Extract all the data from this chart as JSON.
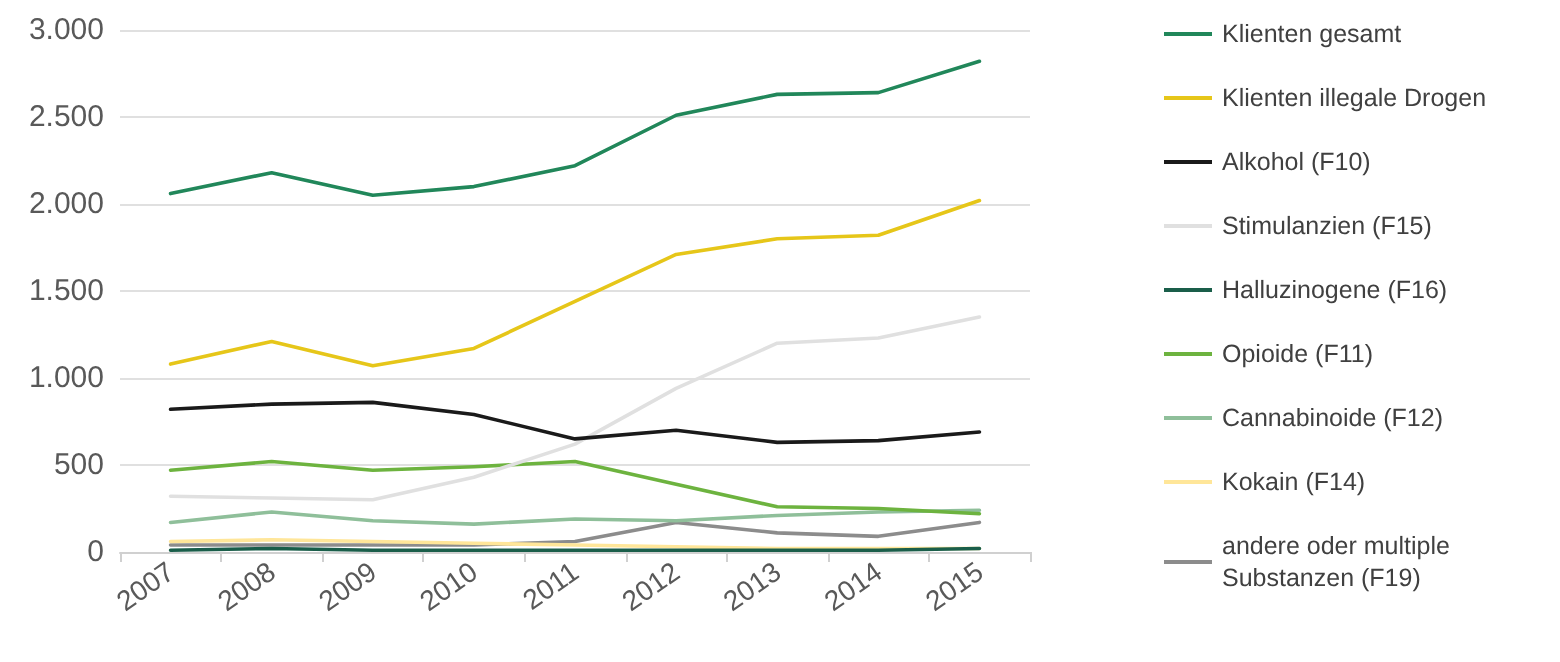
{
  "chart_data": {
    "type": "line",
    "categories": [
      "2007",
      "2008",
      "2009",
      "2010",
      "2011",
      "2012",
      "2013",
      "2014",
      "2015"
    ],
    "series": [
      {
        "name": "Klienten gesamt",
        "color": "#21875a",
        "values": [
          2060,
          2180,
          2050,
          2100,
          2220,
          2510,
          2630,
          2640,
          2820
        ]
      },
      {
        "name": "Klienten illegale Drogen",
        "color": "#e6c619",
        "values": [
          1080,
          1210,
          1070,
          1170,
          1440,
          1710,
          1800,
          1820,
          2020
        ]
      },
      {
        "name": "Alkohol (F10)",
        "color": "#1a1a1a",
        "values": [
          820,
          850,
          860,
          790,
          650,
          700,
          630,
          640,
          690
        ]
      },
      {
        "name": "Stimulanzien (F15)",
        "color": "#e0e0e0",
        "values": [
          320,
          310,
          300,
          430,
          620,
          940,
          1200,
          1230,
          1350
        ]
      },
      {
        "name": "Halluzinogene (F16)",
        "color": "#1a5e4a",
        "values": [
          10,
          20,
          10,
          10,
          10,
          10,
          10,
          10,
          20
        ]
      },
      {
        "name": "Opioide (F11)",
        "color": "#6db33f",
        "values": [
          470,
          520,
          470,
          490,
          520,
          390,
          260,
          250,
          220
        ]
      },
      {
        "name": "Cannabinoide (F12)",
        "color": "#8fbf9a",
        "values": [
          170,
          230,
          180,
          160,
          190,
          180,
          210,
          230,
          240
        ]
      },
      {
        "name": "Kokain (F14)",
        "color": "#ffe699",
        "values": [
          60,
          70,
          60,
          50,
          40,
          30,
          20,
          20,
          20
        ]
      },
      {
        "name": "andere oder multiple\nSubstanzen (F19)",
        "color": "#8c8c8c",
        "values": [
          40,
          40,
          40,
          40,
          60,
          170,
          110,
          90,
          170
        ]
      }
    ],
    "ylim": [
      0,
      3000
    ],
    "yticks": [
      {
        "value": 0,
        "label": "0"
      },
      {
        "value": 500,
        "label": "500"
      },
      {
        "value": 1000,
        "label": "1.000"
      },
      {
        "value": 1500,
        "label": "1.500"
      },
      {
        "value": 2000,
        "label": "2.000"
      },
      {
        "value": 2500,
        "label": "2.500"
      },
      {
        "value": 3000,
        "label": "3.000"
      }
    ],
    "grid": "y",
    "legend": "right",
    "marker": "none",
    "line_style": "solid"
  }
}
